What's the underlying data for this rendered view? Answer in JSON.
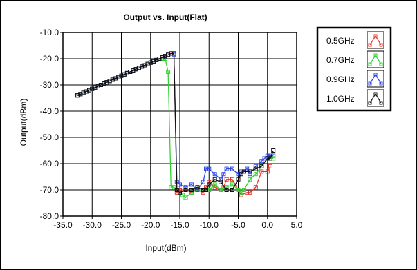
{
  "chart_data": {
    "type": "line",
    "title": "Output vs. Input(Flat)",
    "xlabel": "Input(dBm)",
    "ylabel": "Output(dBm)",
    "xlim": [
      -35,
      5
    ],
    "ylim": [
      -80,
      -10
    ],
    "xticks": [
      -35,
      -30,
      -25,
      -20,
      -15,
      -10,
      -5,
      0,
      5
    ],
    "yticks": [
      -80,
      -70,
      -60,
      -50,
      -40,
      -30,
      -20,
      -10
    ],
    "xtick_labels": [
      "-35.0",
      "-30.0",
      "-25.0",
      "-20.0",
      "-15.0",
      "-10.0",
      "-5.0",
      "0.0",
      "5.0"
    ],
    "ytick_labels": [
      "-80.0",
      "-70.0",
      "-60.0",
      "-50.0",
      "-40.0",
      "-30.0",
      "-20.0",
      "-10.0"
    ],
    "grid": true,
    "legend_position": "top-right",
    "series": [
      {
        "name": "0.5GHz",
        "color": "#e8312a",
        "points": [
          [
            -32.5,
            -34
          ],
          [
            -32,
            -33.5
          ],
          [
            -31.5,
            -33
          ],
          [
            -31,
            -32.5
          ],
          [
            -30.5,
            -32
          ],
          [
            -30,
            -31.5
          ],
          [
            -29.5,
            -31
          ],
          [
            -29,
            -30.5
          ],
          [
            -28.5,
            -30
          ],
          [
            -28,
            -29.5
          ],
          [
            -27.5,
            -29
          ],
          [
            -27,
            -28.5
          ],
          [
            -26.5,
            -28
          ],
          [
            -26,
            -27.5
          ],
          [
            -25.5,
            -27
          ],
          [
            -25,
            -26.5
          ],
          [
            -24.5,
            -26
          ],
          [
            -24,
            -25.5
          ],
          [
            -23.5,
            -25
          ],
          [
            -23,
            -24.5
          ],
          [
            -22.5,
            -24
          ],
          [
            -22,
            -23.5
          ],
          [
            -21.5,
            -23
          ],
          [
            -21,
            -22.5
          ],
          [
            -20.5,
            -22
          ],
          [
            -20,
            -21.5
          ],
          [
            -19.5,
            -21
          ],
          [
            -19,
            -20.5
          ],
          [
            -18.5,
            -20
          ],
          [
            -18,
            -19.5
          ],
          [
            -17.5,
            -19
          ],
          [
            -17,
            -18.5
          ],
          [
            -16.5,
            -18
          ],
          [
            -16,
            -18
          ],
          [
            -15.5,
            -71
          ],
          [
            -15,
            -70
          ],
          [
            -14,
            -70
          ],
          [
            -13,
            -71
          ],
          [
            -12,
            -70
          ],
          [
            -11,
            -71
          ],
          [
            -10.5,
            -69
          ],
          [
            -10,
            -67
          ],
          [
            -9,
            -69
          ],
          [
            -8,
            -70
          ],
          [
            -7.5,
            -69
          ],
          [
            -7,
            -66
          ],
          [
            -6,
            -66
          ],
          [
            -5,
            -70
          ],
          [
            -4.5,
            -72
          ],
          [
            -3.5,
            -71
          ],
          [
            -3,
            -71
          ],
          [
            -2,
            -69
          ],
          [
            -1,
            -63
          ],
          [
            0,
            -63
          ],
          [
            0.5,
            -61
          ]
        ]
      },
      {
        "name": "0.7GHz",
        "color": "#33d133",
        "points": [
          [
            -32.5,
            -34
          ],
          [
            -32,
            -33.5
          ],
          [
            -31.5,
            -33
          ],
          [
            -31,
            -32.5
          ],
          [
            -30.5,
            -32
          ],
          [
            -30,
            -31.5
          ],
          [
            -29.5,
            -31
          ],
          [
            -29,
            -30.5
          ],
          [
            -28.5,
            -30
          ],
          [
            -28,
            -29.5
          ],
          [
            -27.5,
            -29
          ],
          [
            -27,
            -28.5
          ],
          [
            -26.5,
            -28
          ],
          [
            -26,
            -27.5
          ],
          [
            -25.5,
            -27
          ],
          [
            -25,
            -26.5
          ],
          [
            -24.5,
            -26
          ],
          [
            -24,
            -25.5
          ],
          [
            -23.5,
            -25
          ],
          [
            -23,
            -24.5
          ],
          [
            -22.5,
            -24
          ],
          [
            -22,
            -23.5
          ],
          [
            -21.5,
            -23
          ],
          [
            -21,
            -22.5
          ],
          [
            -20.5,
            -22
          ],
          [
            -20,
            -21.5
          ],
          [
            -19.5,
            -21
          ],
          [
            -19,
            -20.5
          ],
          [
            -18,
            -20
          ],
          [
            -17.5,
            -20
          ],
          [
            -17,
            -25
          ],
          [
            -16.5,
            -69
          ],
          [
            -16,
            -69
          ],
          [
            -15,
            -71
          ],
          [
            -14.5,
            -72
          ],
          [
            -14,
            -73
          ],
          [
            -13,
            -71
          ],
          [
            -12,
            -70
          ],
          [
            -11,
            -70
          ],
          [
            -10,
            -70
          ],
          [
            -9,
            -68
          ],
          [
            -8,
            -70
          ],
          [
            -7,
            -69
          ],
          [
            -6,
            -68
          ],
          [
            -5,
            -70
          ],
          [
            -4.5,
            -71
          ],
          [
            -4,
            -70
          ],
          [
            -3,
            -66
          ],
          [
            -2,
            -64
          ],
          [
            -1,
            -61
          ],
          [
            0,
            -58
          ],
          [
            0.5,
            -58
          ],
          [
            1,
            -58
          ]
        ]
      },
      {
        "name": "0.9GHz",
        "color": "#2f48e8",
        "points": [
          [
            -32.5,
            -34
          ],
          [
            -32,
            -33.5
          ],
          [
            -31.5,
            -33
          ],
          [
            -31,
            -32.5
          ],
          [
            -30.5,
            -32
          ],
          [
            -30,
            -31.5
          ],
          [
            -29.5,
            -31
          ],
          [
            -29,
            -30.5
          ],
          [
            -28.5,
            -30
          ],
          [
            -28,
            -29.5
          ],
          [
            -27.5,
            -29
          ],
          [
            -27,
            -28.5
          ],
          [
            -26.5,
            -28
          ],
          [
            -26,
            -27.5
          ],
          [
            -25.5,
            -27
          ],
          [
            -25,
            -26.5
          ],
          [
            -24.5,
            -26
          ],
          [
            -24,
            -25.5
          ],
          [
            -23.5,
            -25
          ],
          [
            -23,
            -24.5
          ],
          [
            -22.5,
            -24
          ],
          [
            -22,
            -23.5
          ],
          [
            -21.5,
            -23
          ],
          [
            -21,
            -22.5
          ],
          [
            -20.5,
            -22
          ],
          [
            -20,
            -21.5
          ],
          [
            -19.5,
            -21
          ],
          [
            -19,
            -20.5
          ],
          [
            -18.5,
            -20
          ],
          [
            -18,
            -19.5
          ],
          [
            -17.5,
            -19
          ],
          [
            -17,
            -18.5
          ],
          [
            -16.5,
            -18
          ],
          [
            -16,
            -18.5
          ],
          [
            -15.5,
            -67
          ],
          [
            -15,
            -68
          ],
          [
            -14,
            -69
          ],
          [
            -13,
            -68
          ],
          [
            -12,
            -70
          ],
          [
            -11,
            -67
          ],
          [
            -10.5,
            -62
          ],
          [
            -10,
            -62
          ],
          [
            -9,
            -64
          ],
          [
            -8,
            -66
          ],
          [
            -7.5,
            -64
          ],
          [
            -7,
            -62
          ],
          [
            -6,
            -62
          ],
          [
            -5,
            -64
          ],
          [
            -4.5,
            -63
          ],
          [
            -3.5,
            -62
          ],
          [
            -3,
            -64
          ],
          [
            -2,
            -61
          ],
          [
            -1,
            -59
          ],
          [
            -0.5,
            -58
          ],
          [
            0,
            -57
          ],
          [
            0.5,
            -57
          ],
          [
            1,
            -57
          ]
        ]
      },
      {
        "name": "1.0GHz",
        "color": "#111111",
        "points": [
          [
            -32.5,
            -34
          ],
          [
            -32,
            -33.5
          ],
          [
            -31.5,
            -33
          ],
          [
            -31,
            -32.5
          ],
          [
            -30.5,
            -32
          ],
          [
            -30,
            -31.5
          ],
          [
            -29.5,
            -31
          ],
          [
            -29,
            -30.5
          ],
          [
            -28.5,
            -30
          ],
          [
            -28,
            -29.5
          ],
          [
            -27.5,
            -29
          ],
          [
            -27,
            -28.5
          ],
          [
            -26.5,
            -28
          ],
          [
            -26,
            -27.5
          ],
          [
            -25.5,
            -27
          ],
          [
            -25,
            -26.5
          ],
          [
            -24.5,
            -26
          ],
          [
            -24,
            -25.5
          ],
          [
            -23.5,
            -25
          ],
          [
            -23,
            -24.5
          ],
          [
            -22.5,
            -24
          ],
          [
            -22,
            -23.5
          ],
          [
            -21.5,
            -23
          ],
          [
            -21,
            -22.5
          ],
          [
            -20.5,
            -22
          ],
          [
            -20,
            -21.5
          ],
          [
            -19.5,
            -21
          ],
          [
            -19,
            -20.5
          ],
          [
            -18.5,
            -20
          ],
          [
            -18,
            -19.5
          ],
          [
            -17.5,
            -19
          ],
          [
            -17,
            -18.5
          ],
          [
            -16.5,
            -18
          ],
          [
            -16,
            -18
          ],
          [
            -15.5,
            -70
          ],
          [
            -15,
            -71
          ],
          [
            -14,
            -70
          ],
          [
            -13,
            -70
          ],
          [
            -12,
            -69
          ],
          [
            -11,
            -70
          ],
          [
            -10.5,
            -70
          ],
          [
            -10,
            -68
          ],
          [
            -9,
            -66
          ],
          [
            -8,
            -67
          ],
          [
            -7,
            -70
          ],
          [
            -6,
            -70
          ],
          [
            -5,
            -66
          ],
          [
            -4.5,
            -64
          ],
          [
            -4,
            -63
          ],
          [
            -3,
            -63
          ],
          [
            -2,
            -62
          ],
          [
            -1,
            -61
          ],
          [
            0,
            -58
          ],
          [
            0.5,
            -58
          ],
          [
            1,
            -55
          ]
        ]
      }
    ]
  }
}
